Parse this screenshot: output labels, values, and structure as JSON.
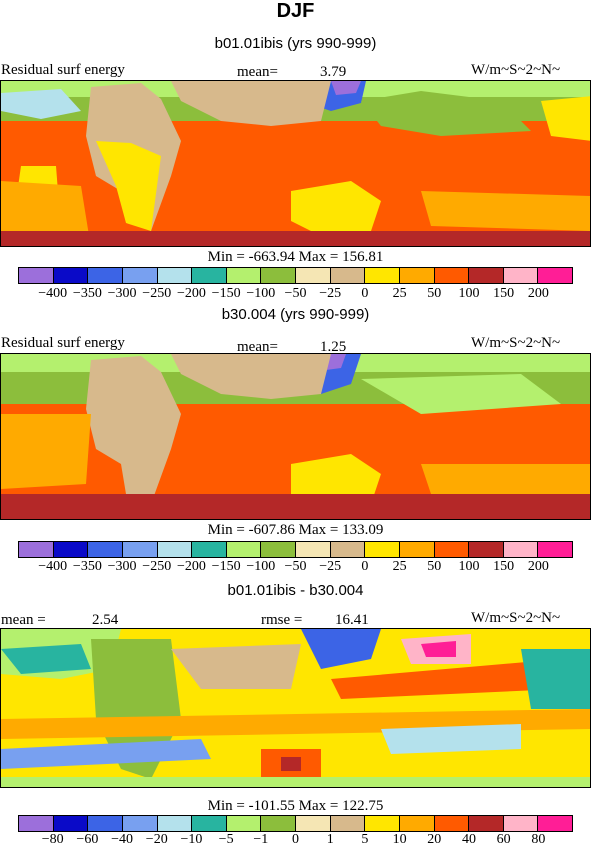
{
  "title": "DJF",
  "panels": [
    {
      "title": "b01.01ibis (yrs 990-999)",
      "left_label": "Residual surf energy",
      "mid_label": "mean=",
      "mid_value": "3.79",
      "units": "W/m~S~2~N~",
      "min_max": "Min = -663.94 Max = 156.81",
      "ticks": [
        "-400",
        "-350",
        "-300",
        "-250",
        "-200",
        "-150",
        "-100",
        "-50",
        "-25",
        "0",
        "25",
        "50",
        "100",
        "150",
        "200"
      ]
    },
    {
      "title": "b30.004 (yrs 990-999)",
      "left_label": "Residual surf energy",
      "mid_label": "mean=",
      "mid_value": "1.25",
      "units": "W/m~S~2~N~",
      "min_max": "Min = -607.86 Max = 133.09",
      "ticks": [
        "-400",
        "-350",
        "-300",
        "-250",
        "-200",
        "-150",
        "-100",
        "-50",
        "-25",
        "0",
        "25",
        "50",
        "100",
        "150",
        "200"
      ]
    },
    {
      "title": "b01.01ibis - b30.004",
      "left_label": "mean =",
      "left_value": "2.54",
      "mid_label": "rmse =",
      "mid_value": "16.41",
      "units": "W/m~S~2~N~",
      "min_max": "Min = -101.55 Max = 122.75",
      "ticks": [
        "-80",
        "-60",
        "-40",
        "-20",
        "-10",
        "-5",
        "-1",
        "0",
        "1",
        "5",
        "10",
        "20",
        "40",
        "60",
        "80"
      ]
    }
  ],
  "colors": [
    "#9c6fdb",
    "#0a0ac8",
    "#3c64e6",
    "#78a0f0",
    "#b4e1ec",
    "#28b4a0",
    "#b4f06e",
    "#8cbe3c",
    "#f5e6b4",
    "#d7b98c",
    "#ffe600",
    "#ffaa00",
    "#ff5a00",
    "#b42828",
    "#ffb4c8",
    "#ff1e96"
  ]
}
